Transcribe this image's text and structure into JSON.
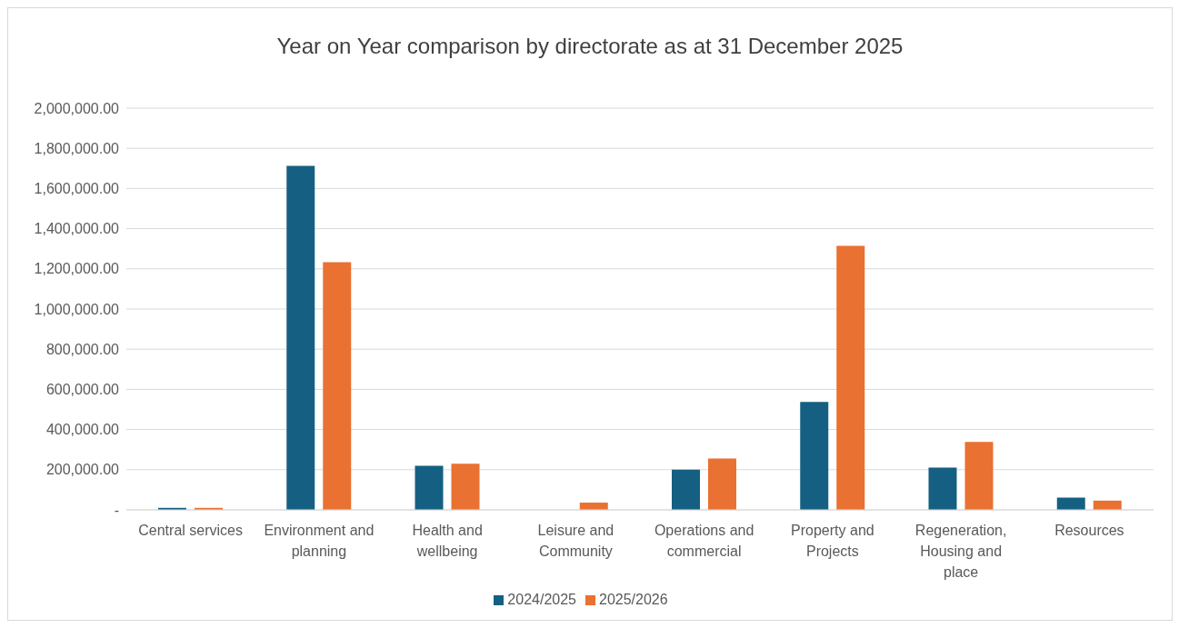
{
  "chart_data": {
    "type": "bar",
    "title": "Year on Year comparison by directorate as at 31 December 2025",
    "categories": [
      "Central services",
      "Environment and planning",
      "Health and wellbeing",
      "Leisure and Community",
      "Operations and commercial",
      "Property and Projects",
      "Regeneration, Housing and place",
      "Resources"
    ],
    "series": [
      {
        "name": "2024/2025",
        "color": "#156082",
        "values": [
          10000,
          1713000,
          220000,
          0,
          200000,
          537000,
          210000,
          61000
        ]
      },
      {
        "name": "2025/2026",
        "color": "#e97132",
        "values": [
          10000,
          1233000,
          230000,
          36000,
          256000,
          1314000,
          338000,
          46000
        ]
      }
    ],
    "ylim": [
      0,
      2000000
    ],
    "yticks": [
      {
        "value": 0,
        "label": "-"
      },
      {
        "value": 200000,
        "label": "200,000.00"
      },
      {
        "value": 400000,
        "label": "400,000.00"
      },
      {
        "value": 600000,
        "label": "600,000.00"
      },
      {
        "value": 800000,
        "label": "800,000.00"
      },
      {
        "value": 1000000,
        "label": "1,000,000.00"
      },
      {
        "value": 1200000,
        "label": "1,200,000.00"
      },
      {
        "value": 1400000,
        "label": "1,400,000.00"
      },
      {
        "value": 1600000,
        "label": "1,600,000.00"
      },
      {
        "value": 1800000,
        "label": "1,800,000.00"
      },
      {
        "value": 2000000,
        "label": "2,000,000.00"
      }
    ],
    "grid": "y",
    "legend": "bottom"
  }
}
